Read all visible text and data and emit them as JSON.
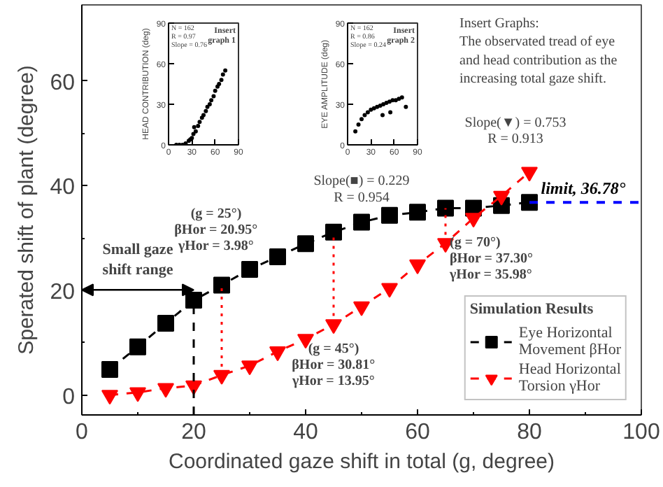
{
  "chart_data": [
    {
      "type": "line",
      "xlabel": "Coordinated gaze shift in total (g, degree)",
      "ylabel": "Sperated shift of plant (degree)",
      "legend_title": "Simulation Results",
      "x": [
        5,
        10,
        15,
        20,
        25,
        30,
        35,
        40,
        45,
        50,
        55,
        60,
        65,
        70,
        75,
        80
      ],
      "series": [
        {
          "name": "Eye Horizontal Movement βHor",
          "color": "#000000",
          "marker": "square",
          "values": [
            4.9,
            9.2,
            13.7,
            18.1,
            21.0,
            24.0,
            26.4,
            28.9,
            31.1,
            33.0,
            34.3,
            34.9,
            35.7,
            35.7,
            36.2,
            36.8
          ]
        },
        {
          "name": "Head Horizontal Torsion γHor",
          "color": "#ff0000",
          "marker": "triangle",
          "values": [
            0,
            0.5,
            1.3,
            1.8,
            3.8,
            5.6,
            8.3,
            10.7,
            13.5,
            16.9,
            20.4,
            24.9,
            29.0,
            33.8,
            38.0,
            42.6
          ]
        }
      ],
      "xlim": [
        0,
        100
      ],
      "ylim": [
        -3.8,
        74.5
      ],
      "xticks": [
        0,
        20,
        40,
        60,
        80,
        100
      ],
      "yticks": [
        0,
        20,
        40,
        60
      ],
      "grid": false,
      "legend": "bottom right",
      "line_style": "dashed",
      "ref_lines": [
        {
          "axis": "x",
          "value": 20,
          "label": null,
          "color": "#000000",
          "line_style": "dashed"
        },
        {
          "axis": "x",
          "value": 25,
          "label": null,
          "color": "#ff0000",
          "line_style": "dotted"
        },
        {
          "axis": "x",
          "value": 45,
          "label": null,
          "color": "#ff0000",
          "line_style": "dotted"
        },
        {
          "axis": "x",
          "value": 65,
          "label": null,
          "color": "#ff0000",
          "line_style": "dotted"
        },
        {
          "axis": "y",
          "value": 36.78,
          "label": "limit,  36.78°",
          "color": "#0000ff",
          "line_style": "dashed"
        }
      ],
      "annotations": [
        {
          "text": "Slope(■) = 0.229\nR = 0.954",
          "x": 50,
          "y": 33.0
        },
        {
          "text": "Slope(▼) = 0.753\nR = 0.913",
          "x": 80,
          "y": 42.6
        },
        "Insert Graphs:\nThe observated tread of eye\nand head contribution as the\nincreasing total gaze shift.",
        {
          "text": "(g = 25°)\nβHor = 20.95°\nγHor = 3.98°",
          "x": 25,
          "y": 21.0
        },
        {
          "text": "(g = 45°)\nβHor = 30.81°\nγHor = 13.95°",
          "x": 45,
          "y": 13.5
        },
        {
          "text": "(g = 70°)\nβHor = 37.30°\nγHor = 35.98°",
          "x": 65,
          "y": 29.0
        },
        "Small gaze\nshift range"
      ]
    },
    {
      "type": "scatter",
      "title": "Insert graph 1",
      "ylabel": "HEAD CONTRIBUTION (deg)",
      "color": "#000000",
      "x": [
        10,
        14,
        18,
        22,
        26,
        28,
        30,
        32,
        33,
        35,
        38,
        40,
        43,
        45,
        48,
        50,
        53,
        55,
        58,
        60,
        63,
        65,
        68,
        70,
        73
      ],
      "values": [
        0,
        0,
        0,
        1,
        3,
        4,
        5,
        8,
        13,
        10,
        14,
        17,
        20,
        22,
        25,
        28,
        30,
        33,
        36,
        40,
        43,
        45,
        48,
        52,
        55
      ],
      "xlim": [
        0,
        90
      ],
      "ylim": [
        0,
        90
      ],
      "xticks": [
        0,
        30,
        60,
        90
      ],
      "yticks": [
        0,
        30,
        60,
        90
      ],
      "grid": false,
      "annotations": [
        "N = 162\nR = 0.97\nSlope = 0.76"
      ]
    },
    {
      "type": "scatter",
      "title": "Insert graph 2",
      "ylabel": "EYE AMPLITUDE (deg)",
      "color": "#000000",
      "x": [
        10,
        14,
        18,
        22,
        26,
        30,
        34,
        38,
        42,
        46,
        50,
        54,
        58,
        62,
        66,
        70,
        45,
        55,
        75
      ],
      "values": [
        10,
        15,
        19,
        22,
        24,
        26,
        27,
        28,
        29,
        30,
        31,
        32,
        33,
        33,
        34,
        35,
        22,
        24,
        28
      ],
      "xlim": [
        0,
        90
      ],
      "ylim": [
        0,
        90
      ],
      "xticks": [
        0,
        30,
        60,
        90
      ],
      "yticks": [
        0,
        30,
        60,
        90
      ],
      "grid": false,
      "annotations": [
        "N = 162\nR = 0.86\nSlope = 0.24"
      ]
    }
  ]
}
